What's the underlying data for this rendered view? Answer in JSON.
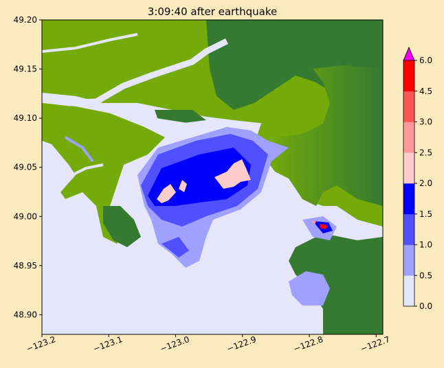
{
  "chart_data": {
    "type": "heatmap",
    "title": "3:09:40 after earthquake",
    "xlabel": "",
    "ylabel": "",
    "xlim": [
      -123.2,
      -122.69
    ],
    "ylim": [
      48.88,
      49.2
    ],
    "x_ticks": [
      -123.2,
      -123.1,
      -123.0,
      -122.9,
      -122.8,
      -122.7
    ],
    "x_tick_labels": [
      "−123.2",
      "−123.1",
      "−123.0",
      "−122.9",
      "−122.8",
      "−122.7"
    ],
    "y_ticks": [
      48.9,
      48.95,
      49.0,
      49.05,
      49.1,
      49.15,
      49.2
    ],
    "y_tick_labels": [
      "48.90",
      "48.95",
      "49.00",
      "49.05",
      "49.10",
      "49.15",
      "49.20"
    ],
    "colorbar": {
      "levels": [
        0.0,
        0.5,
        1.0,
        1.5,
        2.0,
        2.5,
        3.0,
        4.5,
        6.0
      ],
      "tick_labels": [
        "0.0",
        "0.5",
        "1.0",
        "1.5",
        "2.0",
        "2.5",
        "3.0",
        "4.5",
        "6.0"
      ],
      "colors": [
        "#e6e6fa",
        "#a0a0ff",
        "#5050ff",
        "#0000ff",
        "#ffcccc",
        "#ff9999",
        "#ff5555",
        "#ff0000"
      ],
      "extend_color": "#ee00ee",
      "grid": false
    },
    "colors": {
      "low_land": "#74ab0a",
      "high_land": "#357a30",
      "water": "#e6e6fa"
    },
    "grid": false
  }
}
